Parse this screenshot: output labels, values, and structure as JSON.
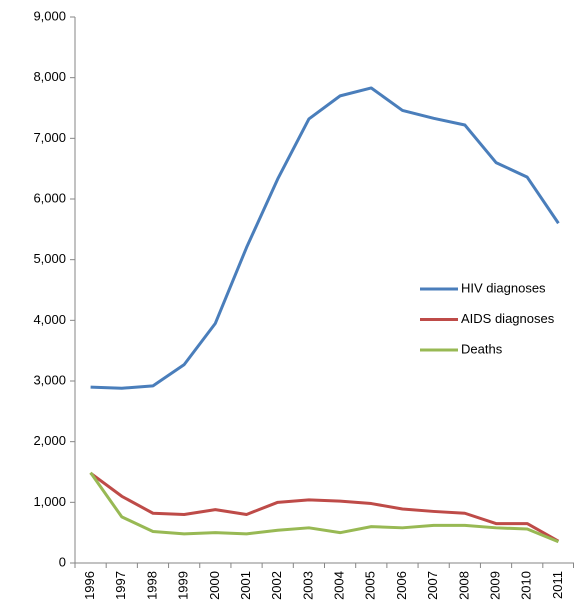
{
  "chart_data": {
    "type": "line",
    "categories": [
      "1996",
      "1997",
      "1998",
      "1999",
      "2000",
      "2001",
      "2002",
      "2003",
      "2004",
      "2005",
      "2006",
      "2007",
      "2008",
      "2009",
      "2010",
      "2011"
    ],
    "series": [
      {
        "name": "HIV diagnoses",
        "color": "#4a7ebb",
        "values": [
          2900,
          2880,
          2920,
          3270,
          3950,
          5200,
          6330,
          7320,
          7700,
          7830,
          7460,
          7330,
          7220,
          6600,
          6360,
          5600
        ]
      },
      {
        "name": "AIDS diagnoses",
        "color": "#be4b48",
        "values": [
          1480,
          1100,
          820,
          800,
          880,
          800,
          1000,
          1040,
          1020,
          980,
          890,
          850,
          820,
          650,
          650,
          360
        ]
      },
      {
        "name": "Deaths",
        "color": "#98b954",
        "values": [
          1490,
          760,
          520,
          480,
          500,
          480,
          540,
          580,
          500,
          600,
          580,
          620,
          620,
          580,
          560,
          350
        ]
      }
    ],
    "ylim": [
      0,
      9000
    ],
    "yticks": [
      0,
      {
        "value": 1000,
        "label": "1,000"
      },
      {
        "value": 2000,
        "label": "2,000"
      },
      {
        "value": 3000,
        "label": "3,000"
      },
      {
        "value": 4000,
        "label": "4,000"
      },
      {
        "value": 5000,
        "label": "5,000"
      },
      {
        "value": 6000,
        "label": "6,000"
      },
      {
        "value": 7000,
        "label": "7,000"
      },
      {
        "value": 8000,
        "label": "8,000"
      },
      {
        "value": 9000,
        "label": "9,000"
      }
    ],
    "grid": false,
    "legend": "right"
  }
}
